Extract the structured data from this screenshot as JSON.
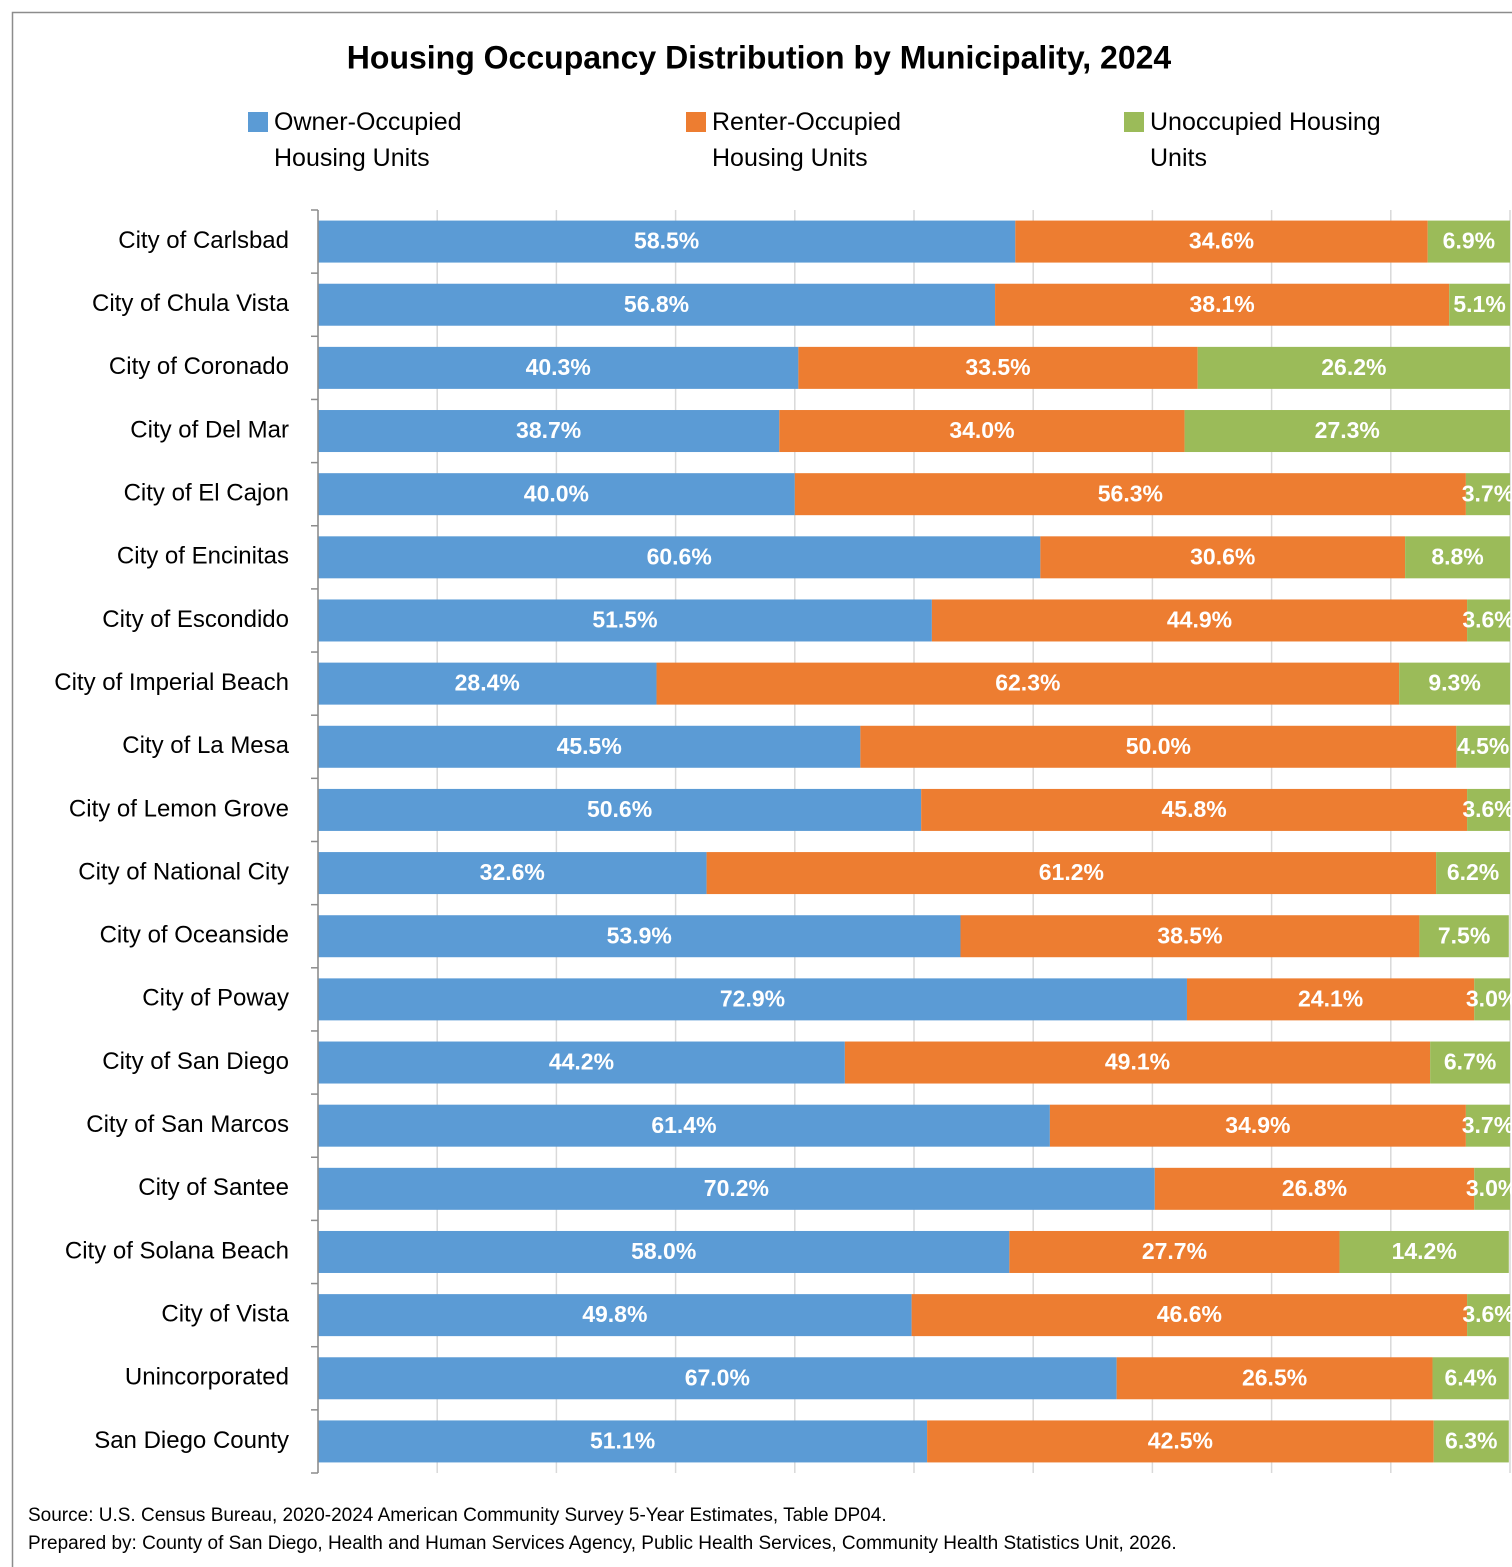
{
  "chart_data": {
    "type": "stacked_bar_horizontal",
    "title": "Housing Occupancy Distribution by Municipality, 2024",
    "categories": [
      "City of Carlsbad",
      "City of Chula Vista",
      "City of Coronado",
      "City of Del Mar",
      "City of El Cajon",
      "City of Encinitas",
      "City of Escondido",
      "City of Imperial Beach",
      "City of La Mesa",
      "City of Lemon Grove",
      "City of National City",
      "City of Oceanside",
      "City of Poway",
      "City of San Diego",
      "City of San Marcos",
      "City of Santee",
      "City of Solana Beach",
      "City of Vista",
      "Unincorporated",
      "San Diego County"
    ],
    "series": [
      {
        "name": "Owner-Occupied Housing Units",
        "color": "#5b9bd5",
        "values": [
          58.5,
          56.8,
          40.3,
          38.7,
          40.0,
          60.6,
          51.5,
          28.4,
          45.5,
          50.6,
          32.6,
          53.9,
          72.9,
          44.2,
          61.4,
          70.2,
          58.0,
          49.8,
          67.0,
          51.1
        ],
        "value_labels": [
          "58.5%",
          "56.8%",
          "40.3%",
          "38.7%",
          "40.0%",
          "60.6%",
          "51.5%",
          "28.4%",
          "45.5%",
          "50.6%",
          "32.6%",
          "53.9%",
          "72.9%",
          "44.2%",
          "61.4%",
          "70.2%",
          "58.0%",
          "49.8%",
          "67.0%",
          "51.1%"
        ]
      },
      {
        "name": "Renter-Occupied Housing Units",
        "color": "#ed7d31",
        "values": [
          34.6,
          38.1,
          33.5,
          34.0,
          56.3,
          30.6,
          44.9,
          62.3,
          50.0,
          45.8,
          61.2,
          38.5,
          24.1,
          49.1,
          34.9,
          26.8,
          27.7,
          46.6,
          26.5,
          42.5
        ],
        "value_labels": [
          "34.6%",
          "38.1%",
          "33.5%",
          "34.0%",
          "56.3%",
          "30.6%",
          "44.9%",
          "62.3%",
          "50.0%",
          "45.8%",
          "61.2%",
          "38.5%",
          "24.1%",
          "49.1%",
          "34.9%",
          "26.8%",
          "27.7%",
          "46.6%",
          "26.5%",
          "42.5%"
        ]
      },
      {
        "name": "Unoccupied Housing Units",
        "color": "#9bbb59",
        "values": [
          6.9,
          5.1,
          26.2,
          27.3,
          3.7,
          8.8,
          3.6,
          9.3,
          4.5,
          3.6,
          6.2,
          7.5,
          3.0,
          6.7,
          3.7,
          3.0,
          14.2,
          3.6,
          6.4,
          6.3
        ],
        "value_labels": [
          "6.9%",
          "5.1%",
          "26.2%",
          "27.3%",
          "3.7%",
          "8.8%",
          "3.6%",
          "9.3%",
          "4.5%",
          "3.6%",
          "6.2%",
          "7.5%",
          "3.0%",
          "6.7%",
          "3.7%",
          "3.0%",
          "14.2%",
          "3.6%",
          "6.4%",
          "6.3%"
        ]
      }
    ],
    "xlim": [
      0,
      100
    ],
    "xticks": [
      0,
      10,
      20,
      30,
      40,
      50,
      60,
      70,
      80,
      90,
      100
    ],
    "grid": true,
    "legend": "top",
    "notes": [
      "Source: U.S. Census Bureau, 2020-2024 American Community Survey 5-Year Estimates, Table DP04.",
      "Prepared by: County of San Diego, Health and Human Services Agency, Public Health Services, Community Health Statistics Unit, 2026."
    ]
  }
}
